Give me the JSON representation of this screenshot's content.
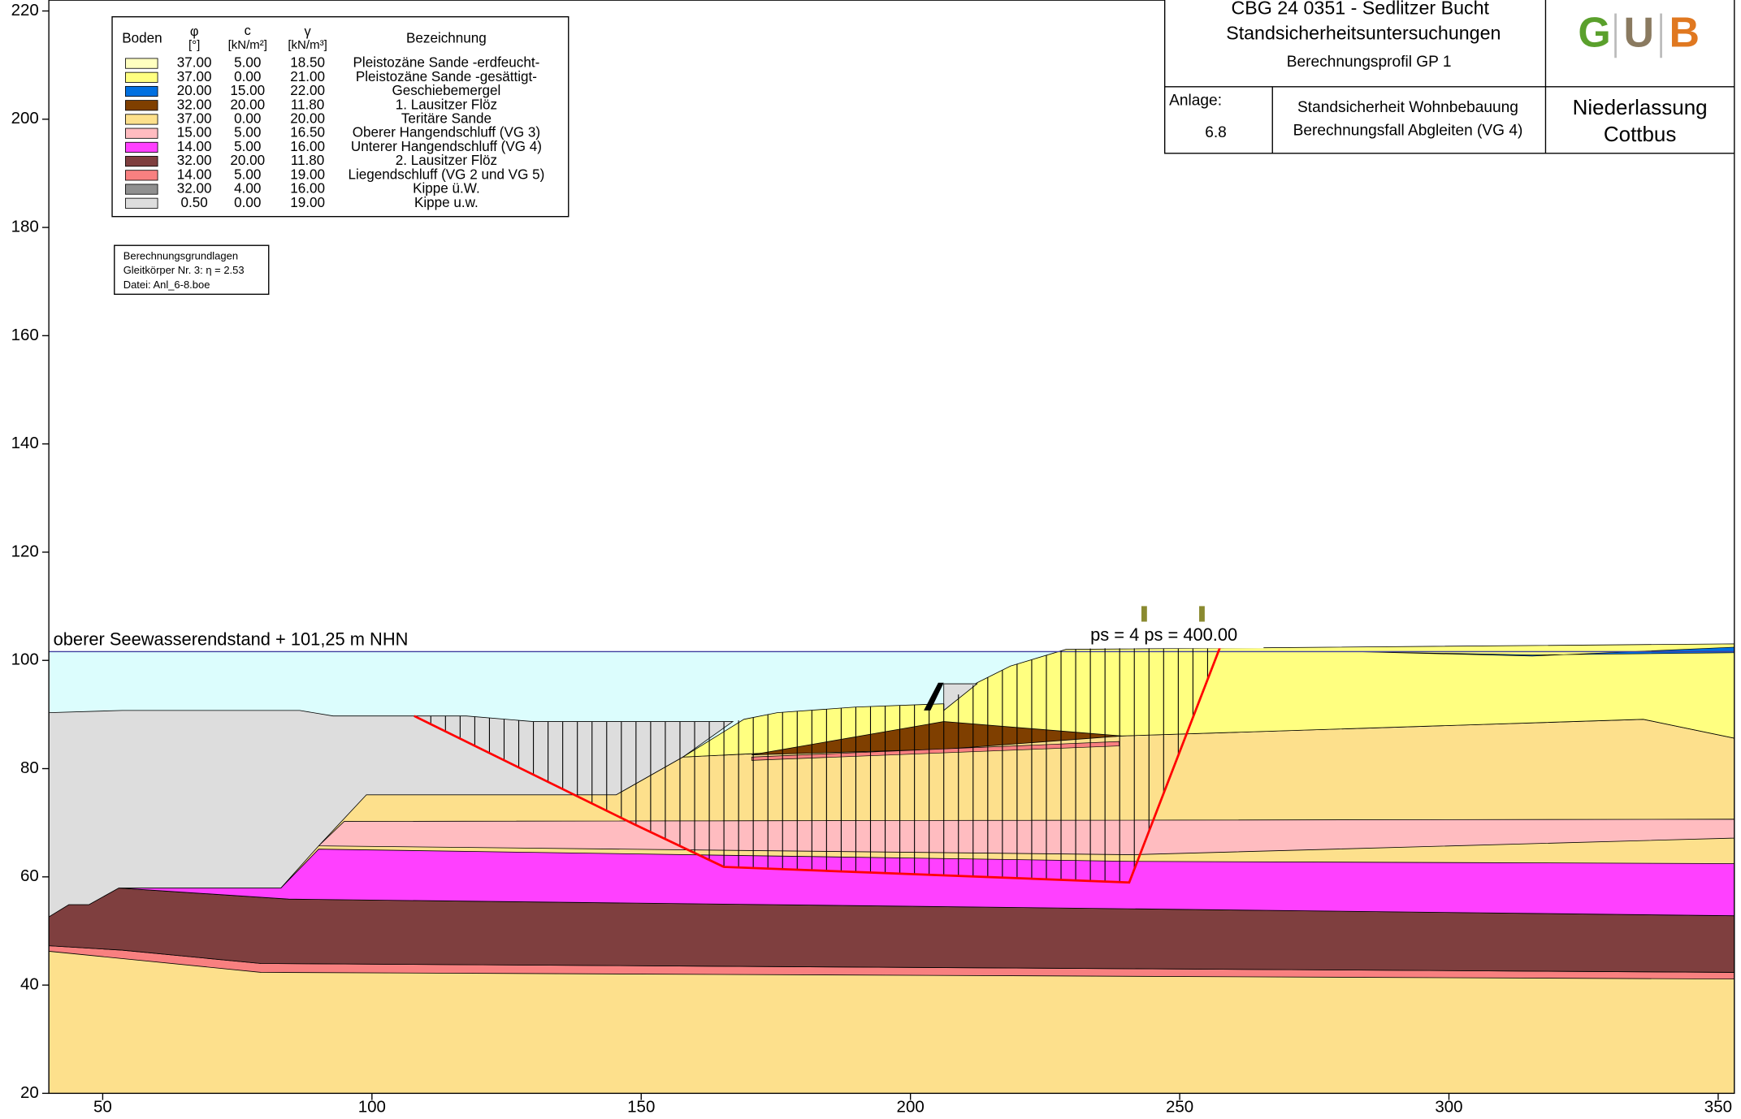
{
  "axes": {
    "xlim": [
      40,
      353
    ],
    "ylim": [
      20,
      222
    ],
    "xticks": [
      50,
      100,
      150,
      200,
      250,
      300,
      350
    ],
    "yticks": [
      20,
      40,
      60,
      80,
      100,
      120,
      140,
      160,
      180,
      200,
      220
    ]
  },
  "legend": {
    "headers": {
      "soil": "Boden",
      "phi": "φ",
      "phi_unit": "[°]",
      "c": "c",
      "c_unit": "[kN/m²]",
      "gamma": "γ",
      "gamma_unit": "[kN/m³]",
      "name": "Bezeichnung"
    },
    "rows": [
      {
        "color": "#ffffc0",
        "phi": "37.00",
        "c": "5.00",
        "gamma": "18.50",
        "name": "Pleistozäne Sande -erdfeucht-"
      },
      {
        "color": "#ffff80",
        "phi": "37.00",
        "c": "0.00",
        "gamma": "21.00",
        "name": "Pleistozäne Sande -gesättigt-"
      },
      {
        "color": "#0070e0",
        "phi": "20.00",
        "c": "15.00",
        "gamma": "22.00",
        "name": "Geschiebemergel"
      },
      {
        "color": "#7f3f00",
        "phi": "32.00",
        "c": "20.00",
        "gamma": "11.80",
        "name": "1. Lausitzer Flöz"
      },
      {
        "color": "#fde08c",
        "phi": "37.00",
        "c": "0.00",
        "gamma": "20.00",
        "name": "Teritäre Sande"
      },
      {
        "color": "#ffbcc0",
        "phi": "15.00",
        "c": "5.00",
        "gamma": "16.50",
        "name": "Oberer Hangendschluff (VG 3)"
      },
      {
        "color": "#ff40ff",
        "phi": "14.00",
        "c": "5.00",
        "gamma": "16.00",
        "name": "Unterer Hangendschluff (VG 4)"
      },
      {
        "color": "#7f3f3f",
        "phi": "32.00",
        "c": "20.00",
        "gamma": "11.80",
        "name": "2. Lausitzer Flöz"
      },
      {
        "color": "#f88080",
        "phi": "14.00",
        "c": "5.00",
        "gamma": "19.00",
        "name": "Liegendschluff (VG 2 und VG 5)"
      },
      {
        "color": "#909090",
        "phi": "32.00",
        "c": "4.00",
        "gamma": "16.00",
        "name": "Kippe ü.W."
      },
      {
        "color": "#dddddd",
        "phi": "0.50",
        "c": "0.00",
        "gamma": "19.00",
        "name": "Kippe u.w."
      }
    ]
  },
  "info_box": [
    "Berechnungsgrundlagen",
    "Gleitkörper Nr. 3: η = 2.53",
    "Datei: Anl_6-8.boe"
  ],
  "annotations": {
    "water_level": "oberer Seewasserendstand + 101,25 m NHN",
    "load": "ps = 4 ps = 400.00"
  },
  "title_block": {
    "project": "CBG 24 0351 - Sedlitzer Bucht",
    "subject": "Standsicherheitsuntersuchungen",
    "profile": "Berechnungsprofil GP 1",
    "annex_label": "Anlage:",
    "annex": "6.8",
    "case1": "Standsicherheit Wohnbebauung",
    "case2": "Berechnungsfall Abgleiten (VG 4)",
    "office1": "Niederlassung",
    "office2": "Cottbus",
    "logo": [
      "G",
      "U",
      "B"
    ]
  }
}
